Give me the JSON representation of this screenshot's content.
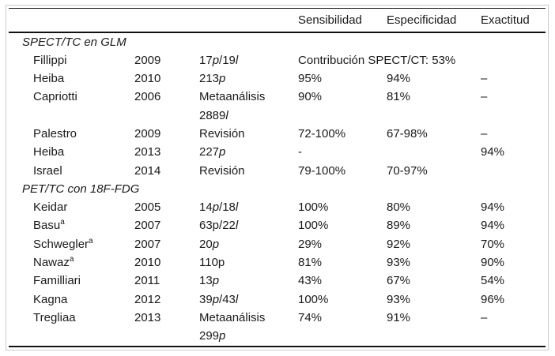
{
  "table": {
    "column_headers": {
      "sensitivity": "Sensibilidad",
      "specificity": "Especificidad",
      "accuracy": "Exactitud"
    },
    "sections": [
      {
        "title": "SPECT/TC en GLM",
        "rows": [
          {
            "author": "Fillippi",
            "author_sup": "",
            "year": "2009",
            "sample": [
              [
                {
                  "t": "17"
                },
                {
                  "t": "p",
                  "i": true
                },
                {
                  "t": "/19"
                },
                {
                  "t": "l",
                  "i": true
                }
              ]
            ],
            "wide_note": "Contribución SPECT/CT: 53%",
            "sens": "",
            "espec": "",
            "exact": ""
          },
          {
            "author": "Heiba",
            "author_sup": "",
            "year": "2010",
            "sample": [
              [
                {
                  "t": "213"
                },
                {
                  "t": "p",
                  "i": true
                }
              ]
            ],
            "sens": "95%",
            "espec": "94%",
            "exact": "–"
          },
          {
            "author": "Capriotti",
            "author_sup": "",
            "year": "2006",
            "sample": [
              [
                {
                  "t": "Metaanálisis"
                }
              ],
              [
                {
                  "t": "2889"
                },
                {
                  "t": "l",
                  "i": true
                }
              ]
            ],
            "sens": "90%",
            "espec": "81%",
            "exact": "–"
          },
          {
            "author": "Palestro",
            "author_sup": "",
            "year": "2009",
            "sample": [
              [
                {
                  "t": "Revisión"
                }
              ]
            ],
            "sens": "72-100%",
            "espec": "67-98%",
            "exact": "–"
          },
          {
            "author": "Heiba",
            "author_sup": "",
            "year": "2013",
            "sample": [
              [
                {
                  "t": "227"
                },
                {
                  "t": "p",
                  "i": true
                }
              ]
            ],
            "sens": "-",
            "espec": "",
            "exact": "94%"
          },
          {
            "author": "Israel",
            "author_sup": "",
            "year": "2014",
            "sample": [
              [
                {
                  "t": "Revisión"
                }
              ]
            ],
            "sens": "79-100%",
            "espec": "70-97%",
            "exact": ""
          }
        ]
      },
      {
        "title": "PET/TC con 18F-FDG",
        "rows": [
          {
            "author": "Keidar",
            "author_sup": "",
            "year": "2005",
            "sample": [
              [
                {
                  "t": "14"
                },
                {
                  "t": "p",
                  "i": true
                },
                {
                  "t": "/18"
                },
                {
                  "t": "l",
                  "i": true
                }
              ]
            ],
            "sens": "100%",
            "espec": "80%",
            "exact": "94%"
          },
          {
            "author": "Basu",
            "author_sup": "a",
            "year": "2007",
            "sample": [
              [
                {
                  "t": "63p/22"
                },
                {
                  "t": "l",
                  "i": true
                }
              ]
            ],
            "sens": "100%",
            "espec": "89%",
            "exact": "94%"
          },
          {
            "author": "Schwegler",
            "author_sup": "a",
            "year": "2007",
            "sample": [
              [
                {
                  "t": "20"
                },
                {
                  "t": "p",
                  "i": true
                }
              ]
            ],
            "sens": "29%",
            "espec": "92%",
            "exact": "70%"
          },
          {
            "author": "Nawaz",
            "author_sup": "a",
            "year": "2010",
            "sample": [
              [
                {
                  "t": "110p"
                }
              ]
            ],
            "sens": "81%",
            "espec": "93%",
            "exact": "90%"
          },
          {
            "author": "Familliari",
            "author_sup": "",
            "year": "2011",
            "sample": [
              [
                {
                  "t": "13"
                },
                {
                  "t": "p",
                  "i": true
                }
              ]
            ],
            "sens": "43%",
            "espec": "67%",
            "exact": "54%"
          },
          {
            "author": "Kagna",
            "author_sup": "",
            "year": "2012",
            "sample": [
              [
                {
                  "t": "39"
                },
                {
                  "t": "p",
                  "i": true
                },
                {
                  "t": "/43"
                },
                {
                  "t": "l",
                  "i": true
                }
              ]
            ],
            "sens": "100%",
            "espec": "93%",
            "exact": "96%"
          },
          {
            "author": "Tregliaa",
            "author_sup": "",
            "year": "2013",
            "sample": [
              [
                {
                  "t": "Metaanálisis"
                }
              ],
              [
                {
                  "t": "299"
                },
                {
                  "t": "p",
                  "i": true
                }
              ]
            ],
            "sens": "74%",
            "espec": "91%",
            "exact": "–"
          }
        ]
      }
    ]
  }
}
